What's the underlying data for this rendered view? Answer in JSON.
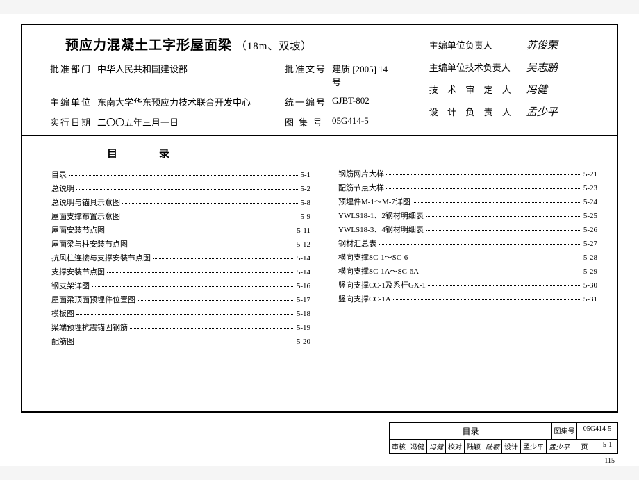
{
  "header": {
    "title_main": "预应力混凝土工字形屋面梁",
    "title_sub": "（18m、双坡）",
    "rows": [
      {
        "lbl1": "批准部门",
        "val1": "中华人民共和国建设部",
        "lbl2": "批准文号",
        "val2": "建质 [2005] 14号"
      },
      {
        "lbl1": "主编单位",
        "val1": "东南大学华东预应力技术联合开发中心",
        "lbl2": "统一编号",
        "val2": "GJBT-802"
      },
      {
        "lbl1": "实行日期",
        "val1": "二〇〇五年三月一日",
        "lbl2": "图 集 号",
        "val2": "05G414-5"
      }
    ]
  },
  "signatures": [
    {
      "role": "主编单位负责人",
      "sig": "苏俊荣",
      "tight": true
    },
    {
      "role": "主编单位技术负责人",
      "sig": "吴志鹏",
      "tight": true
    },
    {
      "role": "技 术 审 定 人",
      "sig": "冯健",
      "tight": false
    },
    {
      "role": "设 计 负 责 人",
      "sig": "孟少平",
      "tight": false
    }
  ],
  "toc_title": "目录",
  "toc_left": [
    {
      "name": "目录",
      "page": "5-1"
    },
    {
      "name": "总说明",
      "page": "5-2"
    },
    {
      "name": "总说明与锚具示意图",
      "page": "5-8"
    },
    {
      "name": "屋面支撑布置示意图",
      "page": "5-9"
    },
    {
      "name": "屋面安装节点图",
      "page": "5-11"
    },
    {
      "name": "屋面梁与柱安装节点图",
      "page": "5-12"
    },
    {
      "name": "抗风柱连接与支撑安装节点图",
      "page": "5-14"
    },
    {
      "name": "支撑安装节点图",
      "page": "5-14"
    },
    {
      "name": "钢支架详图",
      "page": "5-16"
    },
    {
      "name": "屋面梁顶面预埋件位置图",
      "page": "5-17"
    },
    {
      "name": "模板图",
      "page": "5-18"
    },
    {
      "name": "梁端预埋抗震锚固钢筋",
      "page": "5-19"
    },
    {
      "name": "配筋图",
      "page": "5-20"
    }
  ],
  "toc_right": [
    {
      "name": "钢筋网片大样",
      "page": "5-21"
    },
    {
      "name": "配筋节点大样",
      "page": "5-23"
    },
    {
      "name": "预埋件M-1～M-7详图",
      "page": "5-24"
    },
    {
      "name": "YWLS18-1、2钢材明细表",
      "page": "5-25"
    },
    {
      "name": "YWLS18-3、4钢材明细表",
      "page": "5-26"
    },
    {
      "name": "钢材汇总表",
      "page": "5-27"
    },
    {
      "name": "横向支撑SC-1～SC-6",
      "page": "5-28"
    },
    {
      "name": "横向支撑SC-1A～SC-6A",
      "page": "5-29"
    },
    {
      "name": "竖向支撑CC-1及系杆GX-1",
      "page": "5-30"
    },
    {
      "name": "竖向支撑CC-1A",
      "page": "5-31"
    }
  ],
  "footer": {
    "title": "目录",
    "set_label": "图集号",
    "set_value": "05G414-5",
    "cells": [
      {
        "lbl": "审核",
        "name": "冯健",
        "sig": "冯健"
      },
      {
        "lbl": "校对",
        "name": "陆颖",
        "sig": "陆颖"
      },
      {
        "lbl": "设计",
        "name": "孟少平",
        "sig": "孟少平"
      }
    ],
    "page_label": "页",
    "page_value": "5-1"
  },
  "doc_page": "115"
}
